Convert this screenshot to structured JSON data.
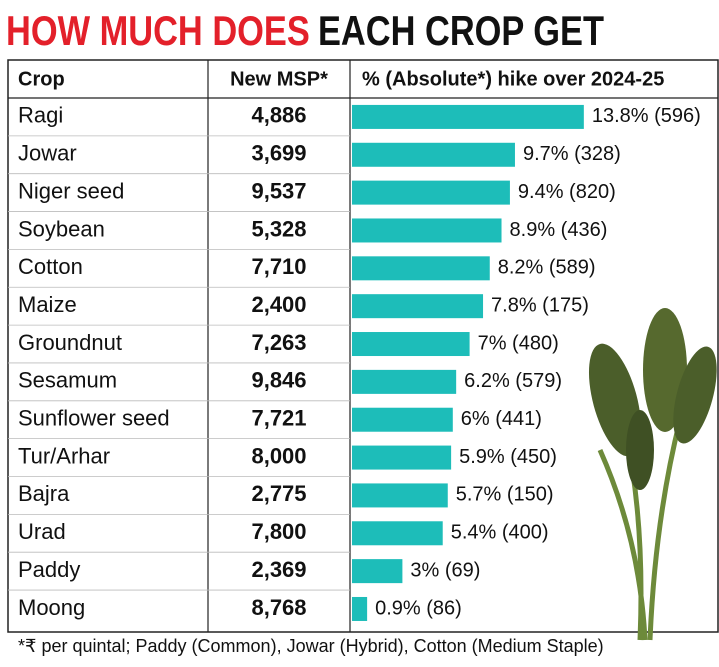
{
  "title": {
    "part1": "HOW MUCH DOES",
    "part2": "EACH CROP GET"
  },
  "chart_data": {
    "type": "bar",
    "columns": [
      "Crop",
      "New MSP*",
      "% (Absolute*) hike over 2024-25"
    ],
    "categories": [
      "Ragi",
      "Jowar",
      "Niger seed",
      "Soybean",
      "Cotton",
      "Maize",
      "Groundnut",
      "Sesamum",
      "Sunflower seed",
      "Tur/Arhar",
      "Bajra",
      "Urad",
      "Paddy",
      "Moong"
    ],
    "msp": [
      "4,886",
      "3,699",
      "9,537",
      "5,328",
      "7,710",
      "2,400",
      "7,263",
      "9,846",
      "7,721",
      "8,000",
      "2,775",
      "7,800",
      "2,369",
      "8,768"
    ],
    "values": [
      13.8,
      9.7,
      9.4,
      8.9,
      8.2,
      7.8,
      7,
      6.2,
      6,
      5.9,
      5.7,
      5.4,
      3,
      0.9
    ],
    "value_labels": [
      "13.8% (596)",
      "9.7% (328)",
      "9.4% (820)",
      "8.9% (436)",
      "8.2% (589)",
      "7.8% (175)",
      "7% (480)",
      "6.2% (579)",
      "6% (441)",
      "5.9% (450)",
      "5.7% (150)",
      "5.4% (400)",
      "3% (69)",
      "0.9% (86)"
    ],
    "color": "#1dbdb9"
  },
  "footnote": "*₹ per quintal; Paddy (Common), Jowar (Hybrid), Cotton (Medium Staple)"
}
